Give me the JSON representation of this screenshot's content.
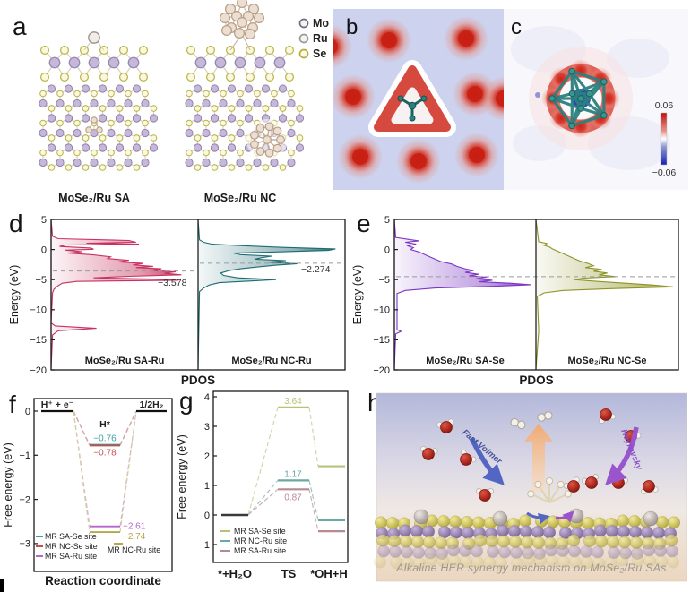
{
  "figure": {
    "panel_labels": {
      "a": "a",
      "b": "b",
      "c": "c",
      "d": "d",
      "e": "e",
      "f": "f",
      "g": "g",
      "h": "h"
    }
  },
  "panel_a": {
    "legend": [
      {
        "name": "Mo",
        "fill": "#f4f2f6",
        "outline": "#6f6f78"
      },
      {
        "name": "Ru",
        "fill": "#f5f2ef",
        "outline": "#9a9a9a"
      },
      {
        "name": "Se",
        "fill": "#fcfae6",
        "outline": "#b3ae3e"
      }
    ],
    "captions": [
      "MoSe₂/Ru SA",
      "MoSe₂/Ru NC"
    ],
    "colors": {
      "mo_fill": "#c6b8d8",
      "mo_line": "#9483b0",
      "se_fill": "#fbf8dd",
      "se_line": "#b8b347",
      "ru_fill": "#ecdfd2",
      "ru_line": "#b79e86",
      "bond": "#d9d4bd"
    }
  },
  "panel_b": {
    "background": "#cdd2ee",
    "blob_color": "#cc2218",
    "molecule_color": "#1d6363",
    "triangle_color": "#d6493f"
  },
  "panel_c": {
    "background": "#f7f7fc",
    "cluster_color": "#2c8080",
    "core_color": "#1c2cc0",
    "colorbar": {
      "max": "0.06",
      "min": "−0.06",
      "top_color": "#c01010",
      "bottom_color": "#1822b8"
    }
  },
  "panel_h": {
    "caption": "Alkaline HER synergy mechanism on MoSe₂/Ru SAs",
    "arrow_labels": {
      "left": "Fast Volmer",
      "right": "Heyrovsky"
    },
    "arrow_colors": {
      "left": "#5366c4",
      "right": "#9a55cc",
      "center": "#f2a96e"
    }
  },
  "chart_data": [
    {
      "id": "d",
      "type": "area",
      "orientation": "horizontal",
      "ylabel": "Energy (eV)",
      "xlabel": "PDOS",
      "ylim": [
        5,
        -20
      ],
      "yticks": [
        5,
        0,
        -5,
        -10,
        -15,
        -20
      ],
      "subpanels": [
        {
          "title": "MoSe₂/Ru SA-Ru",
          "color": "#c8315f",
          "dband_center": -3.578,
          "dband_label": "−3.578",
          "curve": [
            [
              5,
              0
            ],
            [
              2.2,
              0.01
            ],
            [
              1.8,
              0.05
            ],
            [
              1.5,
              0.55
            ],
            [
              1.2,
              0.6
            ],
            [
              1.05,
              0.25
            ],
            [
              0.9,
              0.62
            ],
            [
              0.75,
              0.1
            ],
            [
              0.5,
              0.06
            ],
            [
              0.25,
              0.28
            ],
            [
              0.05,
              0.3
            ],
            [
              -0.1,
              0.1
            ],
            [
              -0.35,
              0.22
            ],
            [
              -0.6,
              0.12
            ],
            [
              -0.9,
              0.3
            ],
            [
              -1.2,
              0.42
            ],
            [
              -1.5,
              0.4
            ],
            [
              -1.8,
              0.55
            ],
            [
              -2.05,
              0.48
            ],
            [
              -2.3,
              0.65
            ],
            [
              -2.55,
              0.58
            ],
            [
              -2.8,
              0.72
            ],
            [
              -3.0,
              0.6
            ],
            [
              -3.2,
              0.78
            ],
            [
              -3.45,
              0.7
            ],
            [
              -3.7,
              0.88
            ],
            [
              -3.95,
              0.8
            ],
            [
              -4.2,
              0.92
            ],
            [
              -4.45,
              0.55
            ],
            [
              -4.7,
              0.3
            ],
            [
              -4.9,
              0.72
            ],
            [
              -5.1,
              0.9
            ],
            [
              -5.3,
              0.18
            ],
            [
              -5.6,
              0.08
            ],
            [
              -6.0,
              0.05
            ],
            [
              -6.6,
              0.02
            ],
            [
              -7.2,
              0.01
            ],
            [
              -12.2,
              0
            ],
            [
              -12.7,
              0.03
            ],
            [
              -13.1,
              0.32
            ],
            [
              -13.5,
              0.05
            ],
            [
              -14.2,
              0.01
            ],
            [
              -20,
              0
            ]
          ]
        },
        {
          "title": "MoSe₂/Ru NC-Ru",
          "color": "#1f6b73",
          "dband_center": -2.274,
          "dband_label": "−2.274",
          "curve": [
            [
              5,
              0
            ],
            [
              1.6,
              0.01
            ],
            [
              1.2,
              0.04
            ],
            [
              0.9,
              0.1
            ],
            [
              0.6,
              0.35
            ],
            [
              0.35,
              0.6
            ],
            [
              0.1,
              0.97
            ],
            [
              -0.15,
              0.92
            ],
            [
              -0.4,
              0.55
            ],
            [
              -0.6,
              0.25
            ],
            [
              -0.85,
              0.3
            ],
            [
              -1.1,
              0.52
            ],
            [
              -1.35,
              0.45
            ],
            [
              -1.6,
              0.4
            ],
            [
              -1.85,
              0.62
            ],
            [
              -2.1,
              0.5
            ],
            [
              -2.35,
              0.7
            ],
            [
              -2.6,
              0.55
            ],
            [
              -2.9,
              0.42
            ],
            [
              -3.2,
              0.3
            ],
            [
              -3.5,
              0.22
            ],
            [
              -3.9,
              0.16
            ],
            [
              -4.3,
              0.18
            ],
            [
              -4.7,
              0.28
            ],
            [
              -5.0,
              0.55
            ],
            [
              -5.25,
              0.35
            ],
            [
              -5.5,
              0.15
            ],
            [
              -5.9,
              0.08
            ],
            [
              -6.4,
              0.04
            ],
            [
              -7.0,
              0.01
            ],
            [
              -20,
              0
            ]
          ]
        }
      ]
    },
    {
      "id": "e",
      "type": "area",
      "orientation": "horizontal",
      "ylabel": "Energy (eV)",
      "xlabel": "PDOS",
      "ylim": [
        5,
        -20
      ],
      "yticks": [
        5,
        0,
        -5,
        -10,
        -15,
        -20
      ],
      "dashed_line": -4.5,
      "subpanels": [
        {
          "title": "MoSe₂/Ru SA-Se",
          "color": "#7c36c4",
          "curve": [
            [
              5,
              0
            ],
            [
              2.0,
              0.01
            ],
            [
              1.7,
              0.1
            ],
            [
              1.45,
              0.18
            ],
            [
              1.2,
              0.08
            ],
            [
              0.9,
              0.16
            ],
            [
              0.6,
              0.1
            ],
            [
              0.3,
              0.14
            ],
            [
              0,
              0.12
            ],
            [
              -0.4,
              0.18
            ],
            [
              -0.8,
              0.22
            ],
            [
              -1.2,
              0.26
            ],
            [
              -1.6,
              0.3
            ],
            [
              -2.0,
              0.34
            ],
            [
              -2.4,
              0.42
            ],
            [
              -2.8,
              0.46
            ],
            [
              -3.2,
              0.52
            ],
            [
              -3.5,
              0.58
            ],
            [
              -3.8,
              0.52
            ],
            [
              -4.1,
              0.62
            ],
            [
              -4.35,
              0.55
            ],
            [
              -4.6,
              0.68
            ],
            [
              -4.85,
              0.6
            ],
            [
              -5.1,
              0.72
            ],
            [
              -5.35,
              0.62
            ],
            [
              -5.6,
              0.85
            ],
            [
              -5.85,
              1.0
            ],
            [
              -6.1,
              0.75
            ],
            [
              -6.4,
              0.3
            ],
            [
              -6.8,
              0.08
            ],
            [
              -7.3,
              0.02
            ],
            [
              -13.3,
              0.02
            ],
            [
              -13.6,
              0.05
            ],
            [
              -14,
              0.01
            ],
            [
              -20,
              0
            ]
          ]
        },
        {
          "title": "MoSe₂/Ru NC-Se",
          "color": "#8f9426",
          "curve": [
            [
              5,
              0
            ],
            [
              1.3,
              0.02
            ],
            [
              1.0,
              0.08
            ],
            [
              0.7,
              0.06
            ],
            [
              0.4,
              0.1
            ],
            [
              0.1,
              0.12
            ],
            [
              -0.3,
              0.16
            ],
            [
              -0.7,
              0.2
            ],
            [
              -1.1,
              0.24
            ],
            [
              -1.5,
              0.28
            ],
            [
              -1.9,
              0.32
            ],
            [
              -2.3,
              0.38
            ],
            [
              -2.7,
              0.42
            ],
            [
              -3.0,
              0.36
            ],
            [
              -3.3,
              0.48
            ],
            [
              -3.6,
              0.42
            ],
            [
              -3.9,
              0.52
            ],
            [
              -4.2,
              0.46
            ],
            [
              -4.5,
              0.58
            ],
            [
              -4.75,
              0.35
            ],
            [
              -5.0,
              0.28
            ],
            [
              -5.3,
              0.45
            ],
            [
              -5.6,
              0.65
            ],
            [
              -5.9,
              0.85
            ],
            [
              -6.2,
              1.0
            ],
            [
              -6.5,
              0.55
            ],
            [
              -6.8,
              0.2
            ],
            [
              -7.2,
              0.06
            ],
            [
              -7.8,
              0.01
            ],
            [
              -13.5,
              0.02
            ],
            [
              -20,
              0
            ]
          ]
        }
      ]
    },
    {
      "id": "f",
      "type": "line",
      "ylabel": "Free energy (eV)",
      "xlabel": "Reaction coordinate",
      "ylim": [
        0.3,
        -3.65
      ],
      "yticks": [
        0,
        -1,
        -2,
        -3
      ],
      "state_labels": [
        "H⁺ + e⁻",
        "H*",
        "1/2H₂"
      ],
      "initial": 0,
      "final": 0,
      "series": [
        {
          "name": "MR SA-Se site",
          "color": "#3aa0a0",
          "h_star": -0.76,
          "label": "−0.76"
        },
        {
          "name": "MR NC-Se site",
          "color": "#c0504d",
          "h_star": -0.78,
          "label": "−0.78"
        },
        {
          "name": "MR SA-Ru site",
          "color": "#b565cc",
          "h_star": -2.61,
          "label": "−2.61"
        },
        {
          "name": "MR NC-Ru site",
          "color": "#b3a84c",
          "h_star": -2.74,
          "label": "−2.74",
          "legend_pos": "right"
        }
      ]
    },
    {
      "id": "g",
      "type": "line",
      "ylabel": "Free energy (eV)",
      "xlabel": "",
      "ylim": [
        4.3,
        -1.55
      ],
      "yticks": [
        4,
        3,
        2,
        1,
        0,
        -1
      ],
      "state_labels": [
        "*+H₂O",
        "TS",
        "*OH+H"
      ],
      "initial": 0,
      "series": [
        {
          "name": "MR SA-Se site",
          "color": "#b9c078",
          "ts": 3.64,
          "ts_label": "3.64",
          "final": 1.65
        },
        {
          "name": "MR NC-Ru site",
          "color": "#6aa8a2",
          "ts": 1.17,
          "ts_label": "1.17",
          "final": -0.18
        },
        {
          "name": "MR SA-Ru site",
          "color": "#b58a92",
          "ts": 0.87,
          "ts_label": "0.87",
          "final": -0.55
        }
      ]
    }
  ]
}
